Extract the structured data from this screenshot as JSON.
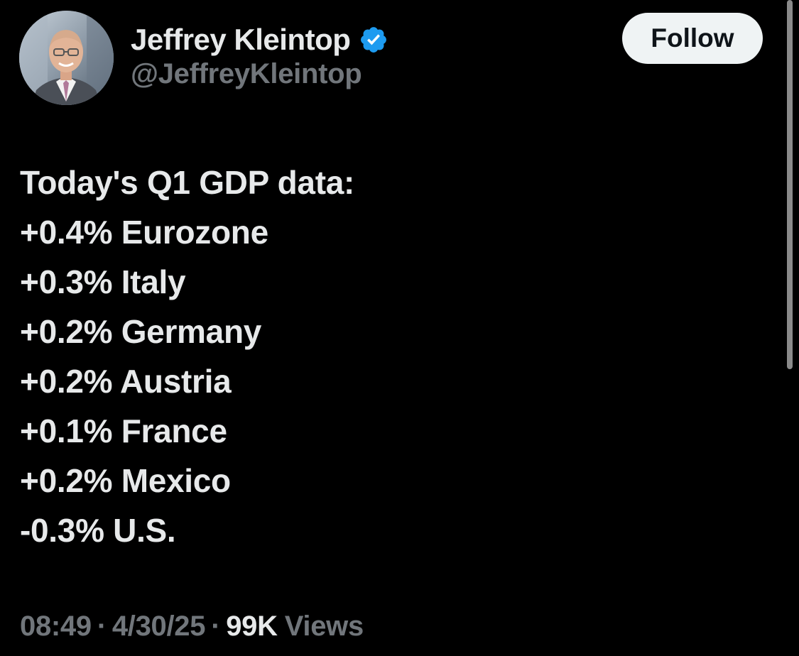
{
  "author": {
    "display_name": "Jeffrey Kleintop",
    "handle": "@JeffreyKleintop",
    "verified_icon": "verified-badge-icon",
    "avatar": "profile-photo"
  },
  "follow_button": {
    "label": "Follow"
  },
  "tweet": {
    "lines": [
      "Today's Q1 GDP data:",
      "+0.4% Eurozone",
      "+0.3% Italy",
      "+0.2% Germany",
      "+0.2% Austria",
      "+0.1% France",
      "+0.2% Mexico",
      "-0.3% U.S."
    ]
  },
  "meta": {
    "time": "08:49",
    "separator": "·",
    "date": "4/30/25",
    "views_count": "99K",
    "views_label": "Views"
  },
  "colors": {
    "background": "#000000",
    "primary_text": "#e7e9ea",
    "secondary_text": "#71767b",
    "verified_blue": "#1d9bf0",
    "follow_bg": "#eff3f4"
  }
}
